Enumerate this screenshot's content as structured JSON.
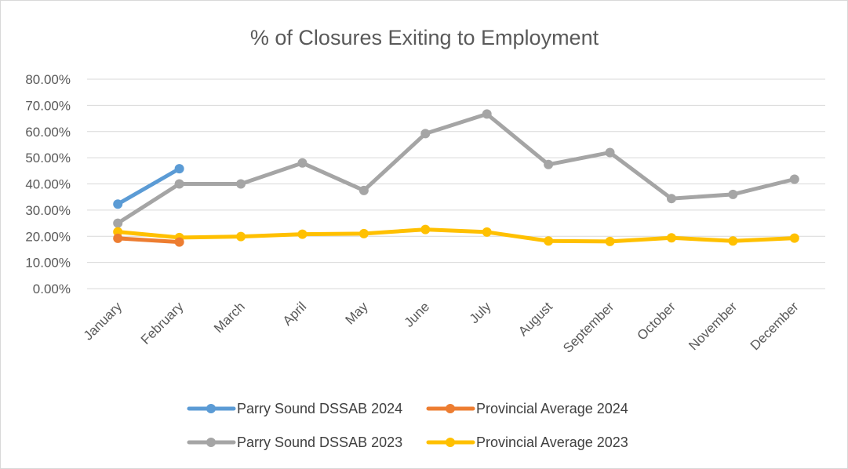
{
  "chart_data": {
    "type": "line",
    "title": "% of Closures Exiting to Employment",
    "xlabel": "",
    "ylabel": "",
    "categories": [
      "January",
      "February",
      "March",
      "April",
      "May",
      "June",
      "July",
      "August",
      "September",
      "October",
      "November",
      "December"
    ],
    "ylim": [
      0,
      80
    ],
    "yticks": [
      "0.00%",
      "10.00%",
      "20.00%",
      "30.00%",
      "40.00%",
      "50.00%",
      "60.00%",
      "70.00%",
      "80.00%"
    ],
    "grid": true,
    "legend_position": "bottom",
    "series": [
      {
        "name": "Parry Sound DSSAB 2024",
        "color": "#5b9bd5",
        "values": [
          32.3,
          45.8,
          null,
          null,
          null,
          null,
          null,
          null,
          null,
          null,
          null,
          null
        ]
      },
      {
        "name": "Provincial Average 2024",
        "color": "#ed7d31",
        "values": [
          19.2,
          17.8,
          null,
          null,
          null,
          null,
          null,
          null,
          null,
          null,
          null,
          null
        ]
      },
      {
        "name": "Parry Sound DSSAB 2023",
        "color": "#a5a5a5",
        "values": [
          25.0,
          40.0,
          40.0,
          48.0,
          37.5,
          59.2,
          66.7,
          47.4,
          52.0,
          34.4,
          36.0,
          41.8
        ]
      },
      {
        "name": "Provincial Average 2023",
        "color": "#ffc000",
        "values": [
          21.7,
          19.5,
          19.9,
          20.8,
          21.0,
          22.6,
          21.6,
          18.2,
          18.0,
          19.4,
          18.2,
          19.3
        ]
      }
    ],
    "draw_order": [
      2,
      3,
      0,
      1
    ]
  }
}
